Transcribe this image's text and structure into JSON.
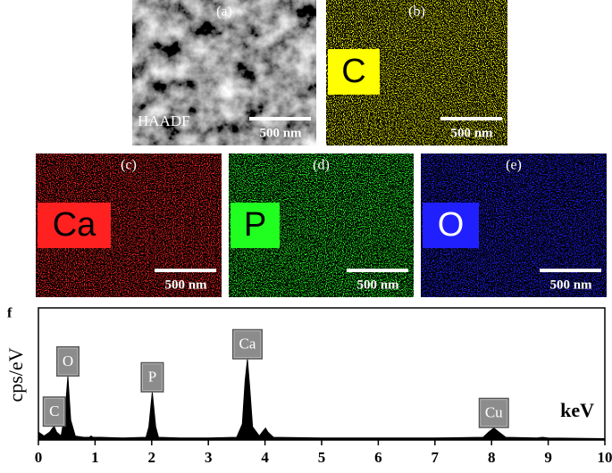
{
  "panels": [
    {
      "label": "(a)",
      "caption": "HAADF",
      "scale": "500 nm"
    },
    {
      "label": "(b)",
      "element": "C",
      "color": "#ffff00",
      "scale": "500 nm"
    },
    {
      "label": "(c)",
      "element": "Ca",
      "color": "#ff2020",
      "scale": "500 nm"
    },
    {
      "label": "(d)",
      "element": "P",
      "color": "#20ff20",
      "scale": "500 nm"
    },
    {
      "label": "(e)",
      "element": "O",
      "color": "#2020ff",
      "scale": "500 nm"
    }
  ],
  "chart_data": {
    "type": "area",
    "panel_label": "f",
    "x_label": "keV",
    "y_label": "cps/eV",
    "color": "#000000",
    "x": [
      0,
      0.1,
      0.2,
      0.25,
      0.28,
      0.32,
      0.4,
      0.47,
      0.52,
      0.57,
      0.65,
      0.8,
      0.9,
      0.93,
      0.96,
      1.1,
      1.5,
      1.9,
      1.95,
      2.01,
      2.07,
      2.12,
      2.5,
      3.0,
      3.5,
      3.6,
      3.65,
      3.69,
      3.73,
      3.78,
      3.9,
      3.97,
      4.01,
      4.05,
      4.15,
      5,
      6,
      7,
      7.85,
      7.95,
      8.04,
      8.13,
      8.25,
      8.8,
      8.9,
      9.0,
      10
    ],
    "values": [
      6,
      3,
      6,
      9,
      10,
      6,
      3,
      20,
      48,
      15,
      3,
      2,
      2,
      3,
      2,
      2,
      1.5,
      2,
      10,
      36,
      10,
      2,
      1.5,
      1.5,
      2,
      12,
      45,
      61,
      40,
      10,
      3,
      7,
      9,
      6,
      2,
      1.5,
      1.5,
      1.5,
      2,
      6,
      9,
      6,
      2,
      1.5,
      2,
      1.5,
      1
    ],
    "annotations": [
      {
        "text": "C",
        "x": 0.28
      },
      {
        "text": "O",
        "x": 0.52
      },
      {
        "text": "P",
        "x": 2.01
      },
      {
        "text": "Ca",
        "x": 3.69
      },
      {
        "text": "Cu",
        "x": 8.04
      }
    ],
    "xlim": [
      0,
      10
    ],
    "xticks": [
      0,
      1,
      2,
      3,
      4,
      5,
      6,
      7,
      8,
      9,
      10
    ],
    "ylim": [
      0,
      100
    ]
  }
}
